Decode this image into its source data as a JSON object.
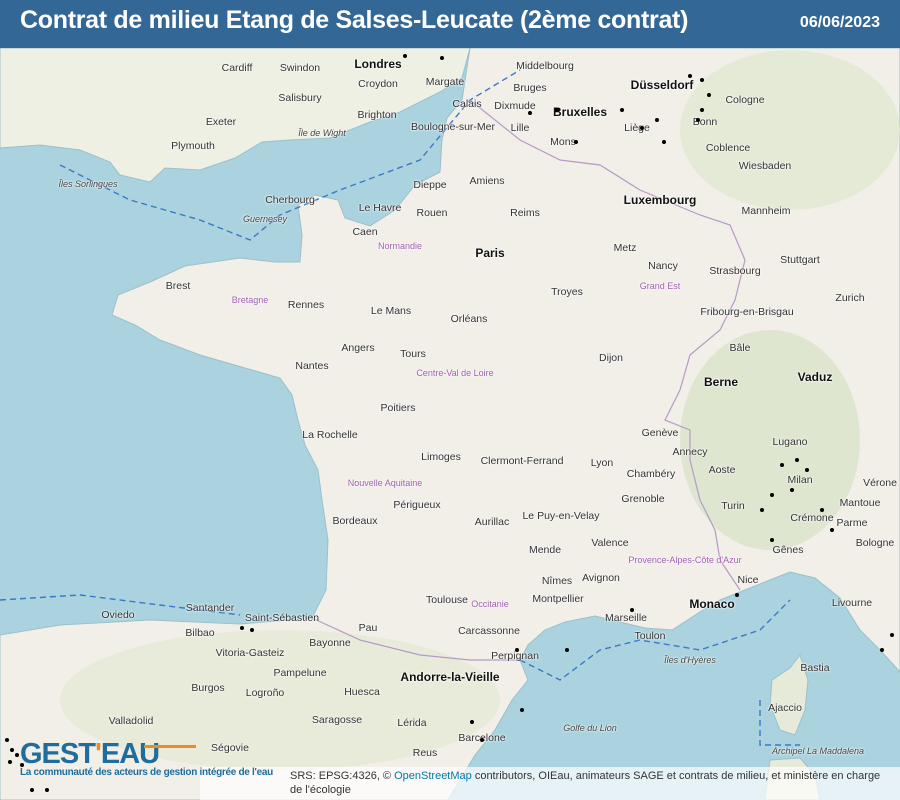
{
  "header": {
    "title": "Contrat de milieu Etang de Salses-Leucate (2ème contrat)",
    "date": "06/06/2023"
  },
  "colors": {
    "header": "#336796",
    "sea": "#aad3df",
    "land": "#f2efe9",
    "logo_blue": "#1f6d9c",
    "logo_orange": "#f08a24"
  },
  "logo": {
    "text_a": "GEST",
    "apostrophe": "'",
    "text_b": "EAU",
    "tagline": "La communauté des acteurs de gestion intégrée de l'eau"
  },
  "attribution": {
    "prefix": "SRS: EPSG:4326, © ",
    "link": "OpenStreetMap",
    "suffix": " contributors, OIEau, animateurs SAGE et contrats de milieu, et ministère en charge de l'écologie"
  },
  "map": {
    "labels": [
      "Londres",
      "Cardiff",
      "Swindon",
      "Croydon",
      "Margate",
      "Salisbury",
      "Brighton",
      "Exeter",
      "Plymouth",
      "Calais",
      "Dixmude",
      "Bruxelles",
      "Bruges",
      "Middelbourg",
      "Düsseldorf",
      "Liège",
      "Bonn",
      "Cologne",
      "Coblence",
      "Wiesbaden",
      "Lille",
      "Mons",
      "Boulogne-sur-Mer",
      "Amiens",
      "Dieppe",
      "Rouen",
      "Caen",
      "Cherbourg",
      "Le Havre",
      "Luxembourg",
      "Reims",
      "Paris",
      "Metz",
      "Nancy",
      "Strasbourg",
      "Mannheim",
      "Stuttgart",
      "Brest",
      "Rennes",
      "Le Mans",
      "Orléans",
      "Troyes",
      "Dijon",
      "Fribourg-en-Brisgau",
      "Bâle",
      "Zurich",
      "Berne",
      "Vaduz",
      "Nantes",
      "Angers",
      "Tours",
      "Poitiers",
      "La Rochelle",
      "Limoges",
      "Clermont-Ferrand",
      "Lyon",
      "Genève",
      "Annecy",
      "Chambéry",
      "Grenoble",
      "Aoste",
      "Lugano",
      "Milan",
      "Turin",
      "Gênes",
      "Bordeaux",
      "Périgueux",
      "Aurillac",
      "Le Puy-en-Velay",
      "Mende",
      "Valence",
      "Nîmes",
      "Avignon",
      "Montpellier",
      "Marseille",
      "Toulon",
      "Nice",
      "Monaco",
      "Toulouse",
      "Carcassonne",
      "Perpignan",
      "Pau",
      "Bayonne",
      "Saint-Sébastien",
      "Bilbao",
      "Santander",
      "Oviedo",
      "Vitoria-Gasteiz",
      "Pampelune",
      "Logroño",
      "Burgos",
      "Andorre-la-Vieille",
      "Huesca",
      "Saragosse",
      "Lérida",
      "Barcelone",
      "Reus",
      "Valladolid",
      "Ségovie",
      "Ajaccio",
      "Bastia",
      "Livourne",
      "Parme",
      "Bologne",
      "Vérone",
      "Mantoue",
      "Crémone",
      "Normandie",
      "Bretagne",
      "Grand Est",
      "Centre-Val de Loire",
      "Nouvelle Aquitaine",
      "Occitanie",
      "Provence-Alpes-Côte d'Azur",
      "Île de Wight",
      "Îles Sorlingues",
      "Guernesey",
      "Îles d'Hyères",
      "Golfe du Lion",
      "Archipel La Maddalena"
    ]
  }
}
